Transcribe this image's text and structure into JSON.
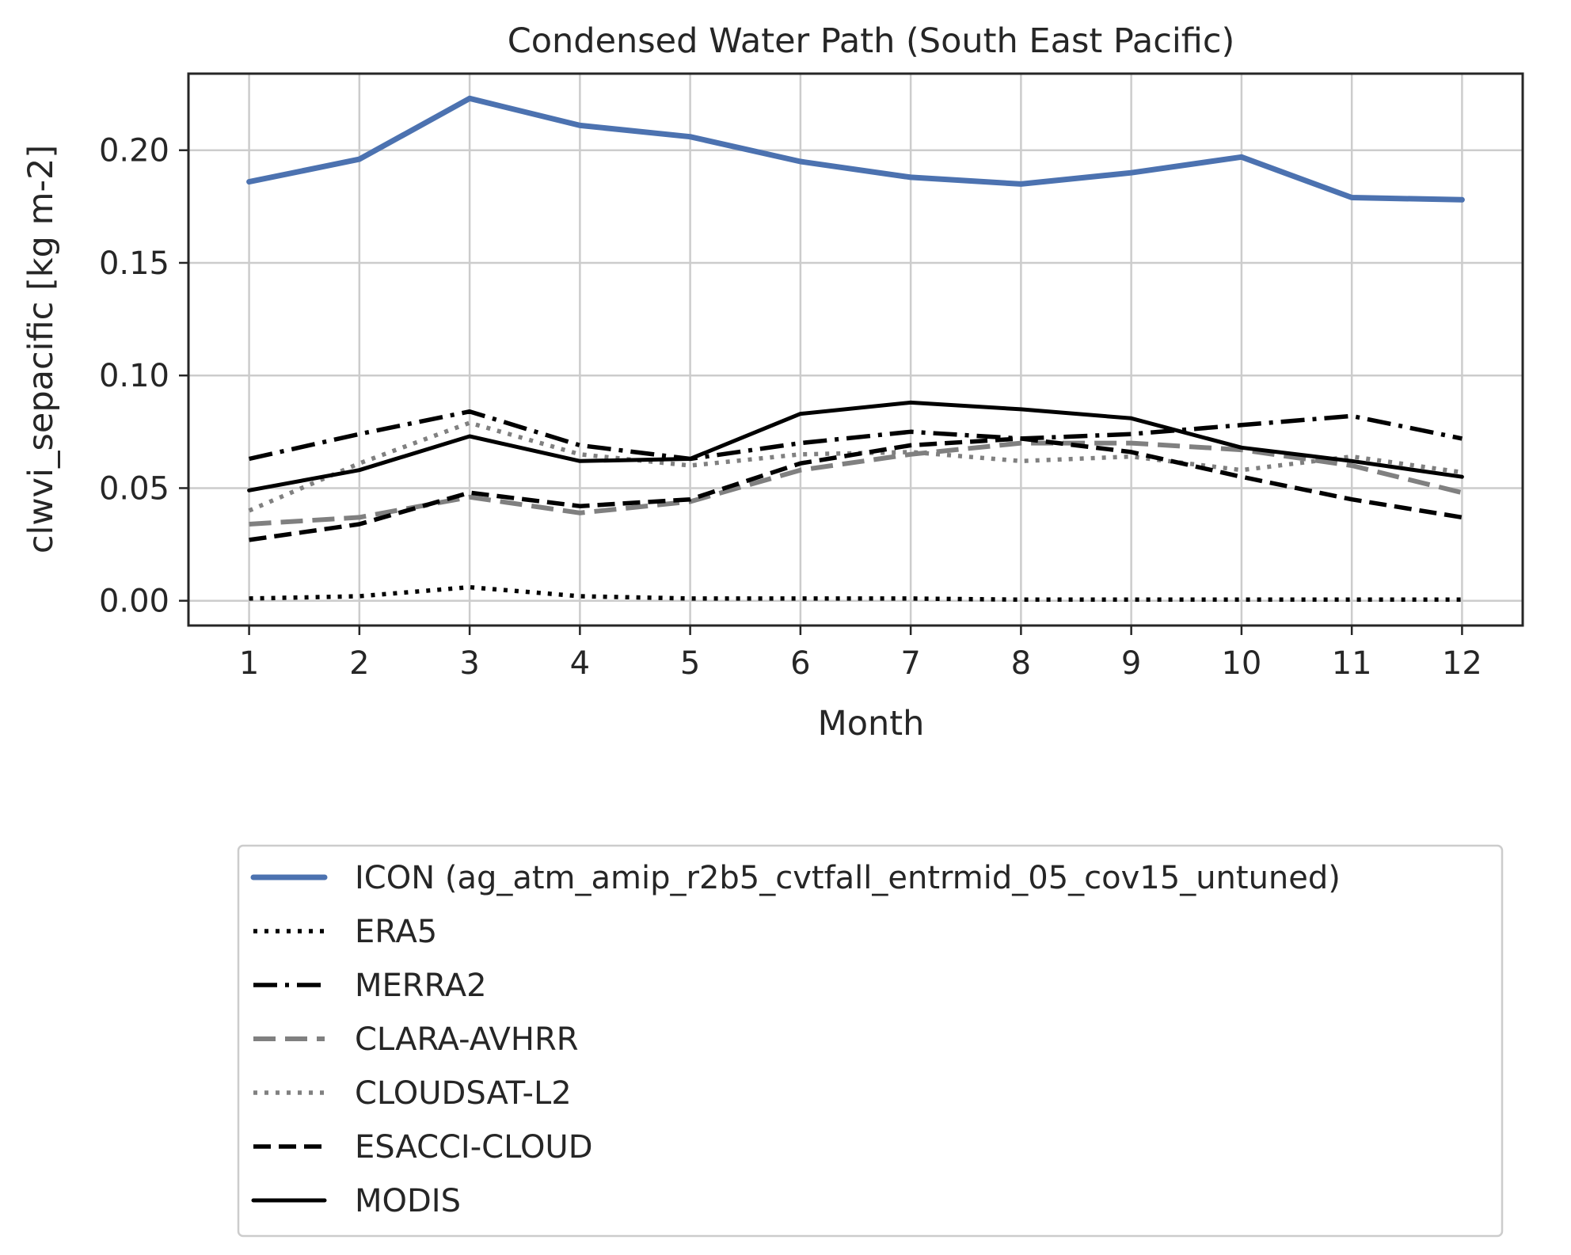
{
  "chart_data": {
    "type": "line",
    "title": "Condensed Water Path (South East Pacific)",
    "xlabel": "Month",
    "ylabel": "clwvi_sepacific [kg m-2]",
    "x": [
      1,
      2,
      3,
      4,
      5,
      6,
      7,
      8,
      9,
      10,
      11,
      12
    ],
    "xticks": [
      "1",
      "2",
      "3",
      "4",
      "5",
      "6",
      "7",
      "8",
      "9",
      "10",
      "11",
      "12"
    ],
    "yticks": [
      "0.00",
      "0.05",
      "0.10",
      "0.15",
      "0.20"
    ],
    "xlim": [
      0.45,
      12.55
    ],
    "ylim": [
      -0.011,
      0.234
    ],
    "grid": true,
    "legend_position": "below plot",
    "series": [
      {
        "name": "ICON (ag_atm_amip_r2b5_cvtfall_entrmid_05_cov15_untuned)",
        "color": "#4c72b0",
        "style": "solid-thick",
        "values": [
          0.186,
          0.196,
          0.223,
          0.211,
          0.206,
          0.195,
          0.188,
          0.185,
          0.19,
          0.197,
          0.179,
          0.178
        ]
      },
      {
        "name": "ERA5",
        "color": "#000000",
        "style": "dotted",
        "values": [
          0.001,
          0.002,
          0.006,
          0.002,
          0.001,
          0.001,
          0.001,
          0.0005,
          0.0005,
          0.0005,
          0.0005,
          0.0005
        ]
      },
      {
        "name": "MERRA2",
        "color": "#000000",
        "style": "dashdot",
        "values": [
          0.063,
          0.074,
          0.084,
          0.069,
          0.063,
          0.07,
          0.075,
          0.072,
          0.074,
          0.078,
          0.082,
          0.072
        ]
      },
      {
        "name": "CLARA-AVHRR",
        "color": "#808080",
        "style": "dashed-long",
        "values": [
          0.034,
          0.037,
          0.046,
          0.039,
          0.044,
          0.058,
          0.065,
          0.07,
          0.07,
          0.067,
          0.06,
          0.048
        ]
      },
      {
        "name": "CLOUDSAT-L2",
        "color": "#808080",
        "style": "dotted",
        "values": [
          0.04,
          0.061,
          0.079,
          0.065,
          0.06,
          0.065,
          0.066,
          0.062,
          0.064,
          0.058,
          0.064,
          0.057
        ]
      },
      {
        "name": "ESACCI-CLOUD",
        "color": "#000000",
        "style": "dashed",
        "values": [
          0.027,
          0.034,
          0.048,
          0.042,
          0.045,
          0.061,
          0.069,
          0.072,
          0.066,
          0.055,
          0.045,
          0.037
        ]
      },
      {
        "name": "MODIS",
        "color": "#000000",
        "style": "solid",
        "values": [
          0.049,
          0.058,
          0.073,
          0.062,
          0.063,
          0.083,
          0.088,
          0.085,
          0.081,
          0.068,
          0.062,
          0.055
        ]
      }
    ]
  }
}
